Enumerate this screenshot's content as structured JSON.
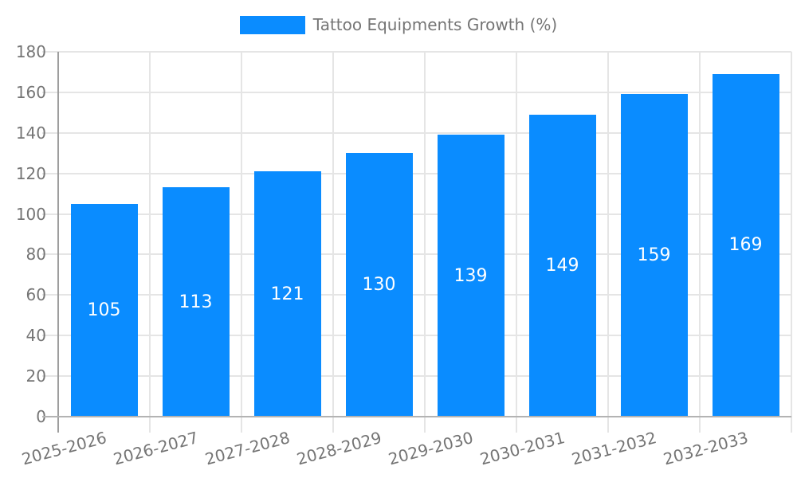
{
  "legend": {
    "label": "Tattoo Equipments Growth (%)",
    "swatch_color": "#0a8cff"
  },
  "chart_data": {
    "type": "bar",
    "title": "",
    "xlabel": "",
    "ylabel": "",
    "categories": [
      "2025-2026",
      "2026-2027",
      "2027-2028",
      "2028-2029",
      "2029-2030",
      "2030-2031",
      "2031-2032",
      "2032-2033"
    ],
    "values": [
      105,
      113,
      121,
      130,
      139,
      149,
      159,
      169
    ],
    "ylim": [
      0,
      180
    ],
    "yticks": [
      0,
      20,
      40,
      60,
      80,
      100,
      120,
      140,
      160,
      180
    ],
    "bar_color": "#0a8cff",
    "value_label_color": "#ffffff",
    "grid": true,
    "legend_position": "top-center",
    "x_label_rotation_deg": -15
  }
}
